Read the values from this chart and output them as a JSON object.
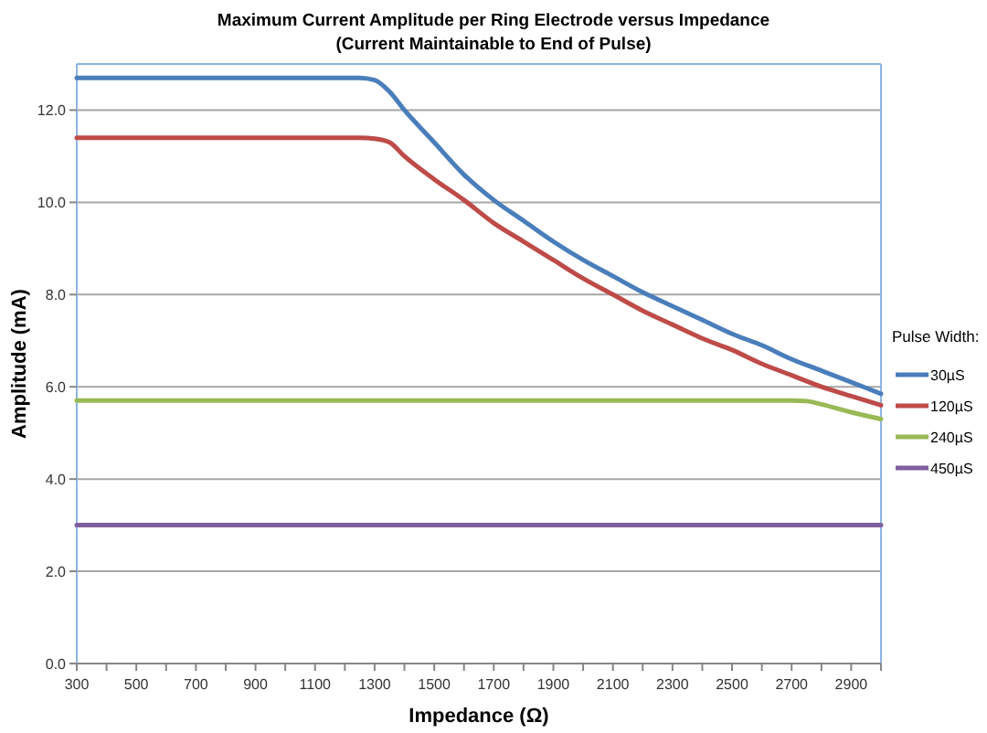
{
  "chart_data": {
    "type": "line",
    "title": "Maximum Current Amplitude per Ring Electrode versus Impedance",
    "subtitle": "(Current Maintainable to End of Pulse)",
    "xlabel": "Impedance (Ω)",
    "ylabel": "Amplitude (mA)",
    "legend_title": "Pulse Width:",
    "legend": "right",
    "grid": "y",
    "marker": "none",
    "line_style": "solid",
    "xlim": [
      300,
      3000
    ],
    "ylim": [
      0,
      13
    ],
    "xticks": [
      300,
      {
        "value": 400,
        "label": null
      },
      500,
      {
        "value": 600,
        "label": null
      },
      700,
      {
        "value": 800,
        "label": null
      },
      900,
      {
        "value": 1000,
        "label": null
      },
      1100,
      {
        "value": 1200,
        "label": null
      },
      1300,
      {
        "value": 1400,
        "label": null
      },
      1500,
      {
        "value": 1600,
        "label": null
      },
      1700,
      {
        "value": 1800,
        "label": null
      },
      1900,
      {
        "value": 2000,
        "label": null
      },
      2100,
      {
        "value": 2200,
        "label": null
      },
      2300,
      {
        "value": 2400,
        "label": null
      },
      2500,
      {
        "value": 2600,
        "label": null
      },
      2700,
      {
        "value": 2800,
        "label": null
      },
      2900,
      {
        "value": 3000,
        "label": null
      }
    ],
    "yticks": [
      {
        "value": 0,
        "label": "0.0"
      },
      {
        "value": 2,
        "label": "2.0"
      },
      {
        "value": 4,
        "label": "4.0"
      },
      {
        "value": 6,
        "label": "6.0"
      },
      {
        "value": 8,
        "label": "8.0"
      },
      {
        "value": 10,
        "label": "10.0"
      },
      {
        "value": 12,
        "label": "12.0"
      }
    ],
    "series": [
      {
        "name": "30µS",
        "color": "#4a7ebb",
        "x": [
          300,
          1200,
          1250,
          1300,
          1350,
          1400,
          1500,
          1600,
          1700,
          1800,
          1900,
          2000,
          2100,
          2200,
          2300,
          2400,
          2500,
          2600,
          2700,
          2800,
          2900,
          3000
        ],
        "values": [
          12.7,
          12.7,
          12.7,
          12.65,
          12.4,
          12.0,
          11.3,
          10.6,
          10.05,
          9.6,
          9.15,
          8.75,
          8.4,
          8.05,
          7.75,
          7.45,
          7.15,
          6.9,
          6.6,
          6.35,
          6.1,
          5.85
        ]
      },
      {
        "name": "120µS",
        "color": "#be4b48",
        "x": [
          300,
          1250,
          1300,
          1350,
          1400,
          1500,
          1600,
          1700,
          1800,
          1900,
          2000,
          2100,
          2200,
          2300,
          2400,
          2500,
          2600,
          2700,
          2800,
          2900,
          3000
        ],
        "values": [
          11.4,
          11.4,
          11.38,
          11.3,
          11.0,
          10.5,
          10.05,
          9.55,
          9.15,
          8.75,
          8.35,
          8.0,
          7.65,
          7.35,
          7.05,
          6.8,
          6.5,
          6.25,
          6.0,
          5.8,
          5.6
        ]
      },
      {
        "name": "240µS",
        "color": "#98b954",
        "x": [
          300,
          2700,
          2750,
          2800,
          2900,
          3000
        ],
        "values": [
          5.7,
          5.7,
          5.69,
          5.62,
          5.45,
          5.3
        ]
      },
      {
        "name": "450µS",
        "color": "#7d60a0",
        "x": [
          300,
          3000
        ],
        "values": [
          3.0,
          3.0
        ]
      }
    ]
  }
}
